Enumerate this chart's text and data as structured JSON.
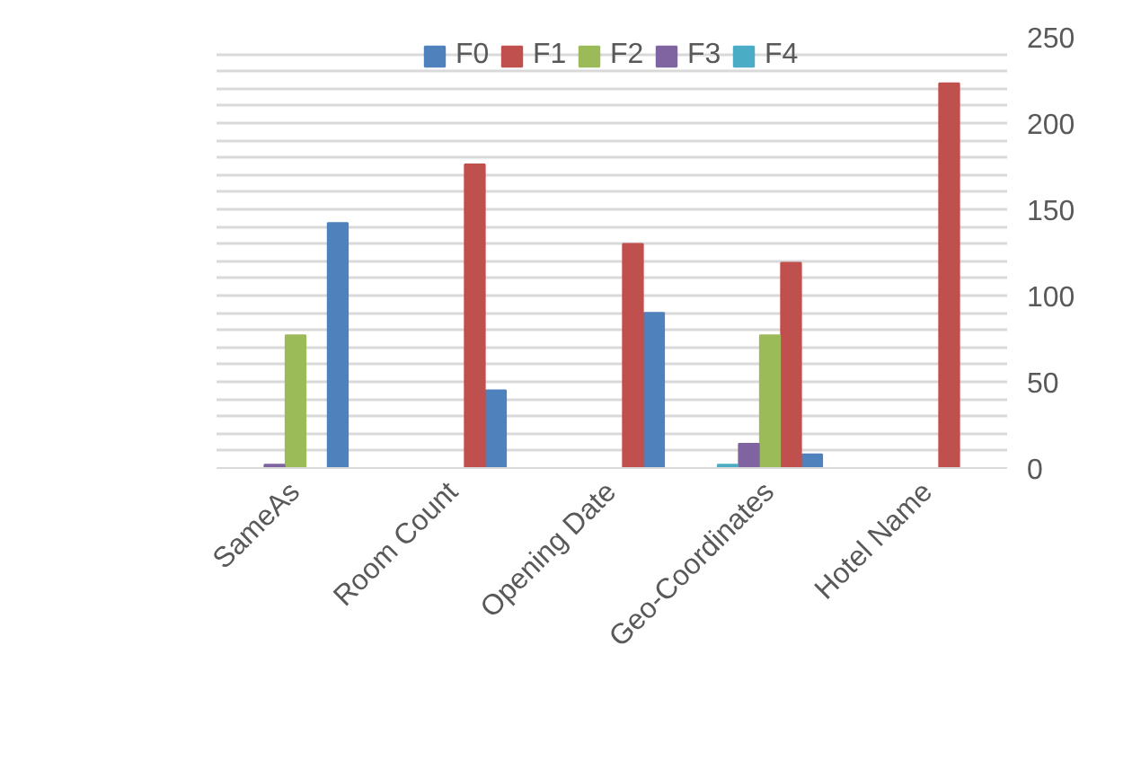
{
  "chart_data": {
    "type": "bar",
    "categories": [
      "SameAs",
      "Room Count",
      "Opening Date",
      "Geo-Coordinates",
      "Hotel Name"
    ],
    "series": [
      {
        "name": "F0",
        "color": "#4f81bd",
        "values": [
          142,
          45,
          90,
          8,
          null
        ]
      },
      {
        "name": "F1",
        "color": "#c0504d",
        "values": [
          null,
          176,
          130,
          119,
          223
        ]
      },
      {
        "name": "F2",
        "color": "#9bbb59",
        "values": [
          77,
          null,
          null,
          77,
          null
        ]
      },
      {
        "name": "F3",
        "color": "#8064a2",
        "values": [
          2,
          null,
          null,
          14,
          null
        ]
      },
      {
        "name": "F4",
        "color": "#4bacc6",
        "values": [
          null,
          null,
          null,
          2,
          null
        ]
      }
    ],
    "ylim": [
      0,
      250
    ],
    "yticks": [
      0,
      {
        "value": 10,
        "label": null
      },
      {
        "value": 20,
        "label": null
      },
      {
        "value": 30,
        "label": null
      },
      {
        "value": 40,
        "label": null
      },
      50,
      {
        "value": 60,
        "label": null
      },
      {
        "value": 70,
        "label": null
      },
      {
        "value": 80,
        "label": null
      },
      {
        "value": 90,
        "label": null
      },
      100,
      {
        "value": 110,
        "label": null
      },
      {
        "value": 120,
        "label": null
      },
      {
        "value": 130,
        "label": null
      },
      {
        "value": 140,
        "label": null
      },
      150,
      {
        "value": 160,
        "label": null
      },
      {
        "value": 170,
        "label": null
      },
      {
        "value": 180,
        "label": null
      },
      {
        "value": 190,
        "label": null
      },
      200,
      {
        "value": 210,
        "label": null
      },
      {
        "value": 220,
        "label": null
      },
      {
        "value": 230,
        "label": null
      },
      {
        "value": 240,
        "label": null
      },
      250
    ],
    "grid": "y",
    "legend": "top"
  }
}
